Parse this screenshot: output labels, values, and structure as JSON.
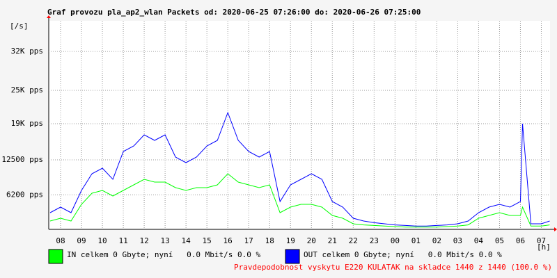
{
  "chart_data": {
    "type": "line",
    "title": "Graf provozu pla_ap2_wlan Packets od: 2020-06-25 07:26:00 do: 2020-06-26 07:25:00",
    "y_unit": "[/s]",
    "x_unit": "[h]",
    "footer": "Pravdepodobnost vyskytu E220 KULATAK na skladce 1440 z 1440 (100.0 %)",
    "xlim": [
      7.433,
      31.417
    ],
    "xticks": [
      {
        "value": 8,
        "label": "08"
      },
      {
        "value": 9,
        "label": "09"
      },
      10,
      11,
      12,
      13,
      14,
      15,
      16,
      17,
      18,
      19,
      20,
      21,
      22,
      23,
      {
        "value": 24,
        "label": "00"
      },
      {
        "value": 25,
        "label": "01"
      },
      {
        "value": 26,
        "label": "02"
      },
      {
        "value": 27,
        "label": "03"
      },
      {
        "value": 28,
        "label": "04"
      },
      {
        "value": 29,
        "label": "05"
      },
      {
        "value": 30,
        "label": "06"
      },
      {
        "value": 31,
        "label": "07"
      }
    ],
    "ylim": [
      0,
      37500
    ],
    "yticks": [
      {
        "value": 6200,
        "label": "6200 pps"
      },
      {
        "value": 12500,
        "label": "12500 pps"
      },
      {
        "value": 19000,
        "label": "19K pps"
      },
      {
        "value": 25000,
        "label": "25K pps"
      },
      {
        "value": 32000,
        "label": "32K pps"
      }
    ],
    "grid": true,
    "x": [
      7.5,
      8,
      8.5,
      9,
      9.5,
      10,
      10.5,
      11,
      11.5,
      12,
      12.5,
      13,
      13.5,
      14,
      14.5,
      15,
      15.5,
      16,
      16.5,
      17,
      17.5,
      18,
      18.5,
      19,
      19.5,
      20,
      20.5,
      21,
      21.5,
      22,
      22.5,
      23,
      23.5,
      24,
      24.5,
      25,
      25.5,
      26,
      26.5,
      27,
      27.5,
      28,
      28.5,
      29,
      29.5,
      30,
      30.1,
      30.5,
      31,
      31.4
    ],
    "series": [
      {
        "name": "OUT celkem 0 Gbyte; nyní   0.0 Mbit/s 0.0 %",
        "color": "#0000ff",
        "values": [
          3000,
          4000,
          3000,
          7000,
          10000,
          11000,
          9000,
          14000,
          15000,
          17000,
          16000,
          17000,
          13000,
          12000,
          13000,
          15000,
          16000,
          21000,
          16000,
          14000,
          13000,
          14000,
          5000,
          8000,
          9000,
          10000,
          9000,
          5000,
          4000,
          2000,
          1500,
          1200,
          1000,
          800,
          700,
          600,
          600,
          700,
          800,
          1000,
          1500,
          3000,
          4000,
          4500,
          4000,
          5000,
          19000,
          1000,
          1000,
          1500
        ]
      },
      {
        "name": "IN celkem 0 Gbyte; nyní   0.0 Mbit/s 0.0 %",
        "color": "#00ff00",
        "values": [
          1500,
          2000,
          1500,
          4500,
          6500,
          7000,
          6000,
          7000,
          8000,
          9000,
          8500,
          8500,
          7500,
          7000,
          7500,
          7500,
          8000,
          10000,
          8500,
          8000,
          7500,
          8000,
          3000,
          4000,
          4500,
          4500,
          4000,
          2500,
          2000,
          1000,
          800,
          700,
          600,
          500,
          400,
          400,
          400,
          400,
          500,
          600,
          800,
          2000,
          2500,
          3000,
          2500,
          2500,
          4000,
          600,
          600,
          800
        ]
      }
    ]
  }
}
